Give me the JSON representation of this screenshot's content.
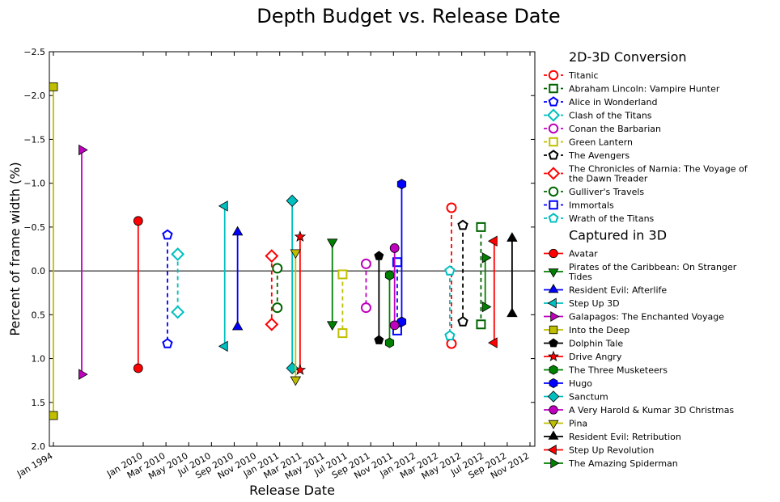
{
  "chart_data": {
    "type": "scatter",
    "title": "Depth Budget vs. Release Date",
    "xlabel": "Release Date",
    "ylabel": "Percent of frame width (%)",
    "ylim": [
      -2.5,
      2.0
    ],
    "y_inverted": true,
    "y_ticks": [
      -2.5,
      -2.0,
      -1.5,
      -1.0,
      -0.5,
      0.0,
      0.5,
      1.0,
      1.5,
      2.0
    ],
    "y_tick_labels": [
      "−2.5",
      "−2.0",
      "−1.5",
      "−1.0",
      "−0.5",
      "0.0",
      "0.5",
      "1.0",
      "1.5",
      "2.0"
    ],
    "x_axis_note": "broken axis: Jan 1994 shown at left, then Jan 2010 to Nov 2012",
    "x_ticks": [
      {
        "label": "Jan 1994",
        "date": "1994-01"
      },
      {
        "label": "Jan 2010",
        "date": "2010-01"
      },
      {
        "label": "Mar 2010",
        "date": "2010-03"
      },
      {
        "label": "May 2010",
        "date": "2010-05"
      },
      {
        "label": "Jul 2010",
        "date": "2010-07"
      },
      {
        "label": "Sep 2010",
        "date": "2010-09"
      },
      {
        "label": "Nov 2010",
        "date": "2010-11"
      },
      {
        "label": "Jan 2011",
        "date": "2011-01"
      },
      {
        "label": "Mar 2011",
        "date": "2011-03"
      },
      {
        "label": "May 2011",
        "date": "2011-05"
      },
      {
        "label": "Jul 2011",
        "date": "2011-07"
      },
      {
        "label": "Sep 2011",
        "date": "2011-09"
      },
      {
        "label": "Nov 2011",
        "date": "2011-11"
      },
      {
        "label": "Jan 2012",
        "date": "2012-01"
      },
      {
        "label": "Mar 2012",
        "date": "2012-03"
      },
      {
        "label": "May 2012",
        "date": "2012-05"
      },
      {
        "label": "Jul 2012",
        "date": "2012-07"
      },
      {
        "label": "Sep 2012",
        "date": "2012-09"
      },
      {
        "label": "Nov 2012",
        "date": "2012-11"
      }
    ],
    "zero_line": 0.0,
    "legend_placement": "right",
    "groups": [
      {
        "heading": "2D-3D Conversion",
        "line_style": "dashed",
        "marker_fill": "hollow",
        "series": [
          {
            "name": "Titanic",
            "color": "#ff0000",
            "marker": "circle",
            "release": "2012-04-04",
            "near": -0.72,
            "far": 0.83
          },
          {
            "name": "Abraham Lincoln: Vampire Hunter",
            "color": "#006400",
            "marker": "square",
            "release": "2012-06-22",
            "near": -0.5,
            "far": 0.61
          },
          {
            "name": "Alice in Wonderland",
            "color": "#0000ff",
            "marker": "pentagon",
            "release": "2010-03-05",
            "near": -0.41,
            "far": 0.83
          },
          {
            "name": "Clash of the Titans",
            "color": "#00bfbf",
            "marker": "diamond",
            "release": "2010-04-02",
            "near": -0.19,
            "far": 0.47
          },
          {
            "name": "Conan the Barbarian",
            "color": "#bf00bf",
            "marker": "circle",
            "release": "2011-08-19",
            "near": -0.08,
            "far": 0.42
          },
          {
            "name": "Green Lantern",
            "color": "#bfbf00",
            "marker": "square",
            "release": "2011-06-17",
            "near": 0.04,
            "far": 0.71
          },
          {
            "name": "The Avengers",
            "color": "#000000",
            "marker": "pentagon",
            "release": "2012-05-04",
            "near": -0.52,
            "far": 0.58
          },
          {
            "name": "The Chronicles of Narnia: The Voyage of the Dawn Treader",
            "color": "#ff0000",
            "marker": "diamond",
            "release": "2010-12-10",
            "near": -0.17,
            "far": 0.61
          },
          {
            "name": "Gulliver's Travels",
            "color": "#006400",
            "marker": "circle",
            "release": "2010-12-25",
            "near": -0.03,
            "far": 0.42
          },
          {
            "name": "Immortals",
            "color": "#0000ff",
            "marker": "square",
            "release": "2011-11-11",
            "near": -0.1,
            "far": 0.68
          },
          {
            "name": "Wrath of the Titans",
            "color": "#00bfbf",
            "marker": "pentagon",
            "release": "2012-03-30",
            "near": 0.0,
            "far": 0.74
          }
        ]
      },
      {
        "heading": "Captured in 3D",
        "line_style": "solid",
        "marker_fill": "filled",
        "series": [
          {
            "name": "Avatar",
            "color": "#ff0000",
            "marker": "circle",
            "release": "2009-12-18",
            "near": -0.57,
            "far": 1.11
          },
          {
            "name": "Pirates of the Caribbean: On Stranger Tides",
            "color": "#008000",
            "marker": "triangle-down",
            "release": "2011-05-20",
            "near": -0.33,
            "far": 0.61
          },
          {
            "name": "Resident Evil: Afterlife",
            "color": "#0000ff",
            "marker": "triangle-up",
            "release": "2010-09-10",
            "near": -0.44,
            "far": 0.64
          },
          {
            "name": "Step Up 3D",
            "color": "#00bfbf",
            "marker": "triangle-left",
            "release": "2010-08-06",
            "near": -0.74,
            "far": 0.86
          },
          {
            "name": "Galapagos: The Enchanted Voyage",
            "color": "#bf00bf",
            "marker": "triangle-right",
            "release": "1999-01-01",
            "near": -1.38,
            "far": 1.18
          },
          {
            "name": "Into the Deep",
            "color": "#bfbf00",
            "marker": "square",
            "release": "1994-01-01",
            "near": -2.1,
            "far": 1.65
          },
          {
            "name": "Dolphin Tale",
            "color": "#000000",
            "marker": "pentagon",
            "release": "2011-09-23",
            "near": -0.17,
            "far": 0.79
          },
          {
            "name": "Drive Angry",
            "color": "#ff0000",
            "marker": "star",
            "release": "2011-02-25",
            "near": -0.39,
            "far": 1.13
          },
          {
            "name": "The Three Musketeers",
            "color": "#008000",
            "marker": "hexagon",
            "release": "2011-10-21",
            "near": 0.05,
            "far": 0.82
          },
          {
            "name": "Hugo",
            "color": "#0000ff",
            "marker": "hexagon",
            "release": "2011-11-23",
            "near": -0.99,
            "far": 0.58
          },
          {
            "name": "Sanctum",
            "color": "#00bfbf",
            "marker": "diamond",
            "release": "2011-02-04",
            "near": -0.8,
            "far": 1.11
          },
          {
            "name": "A Very Harold & Kumar 3D Christmas",
            "color": "#bf00bf",
            "marker": "circle",
            "release": "2011-11-04",
            "near": -0.26,
            "far": 0.62
          },
          {
            "name": "Pina",
            "color": "#bfbf00",
            "marker": "triangle-down",
            "release": "2011-02-13",
            "near": -0.21,
            "far": 1.24
          },
          {
            "name": "Resident Evil: Retribution",
            "color": "#000000",
            "marker": "triangle-up",
            "release": "2012-09-14",
            "near": -0.37,
            "far": 0.49
          },
          {
            "name": "Step Up Revolution",
            "color": "#ff0000",
            "marker": "triangle-left",
            "release": "2012-07-27",
            "near": -0.34,
            "far": 0.82
          },
          {
            "name": "The Amazing Spiderman",
            "color": "#008000",
            "marker": "triangle-right",
            "release": "2012-07-03",
            "near": -0.15,
            "far": 0.41
          }
        ]
      }
    ]
  }
}
